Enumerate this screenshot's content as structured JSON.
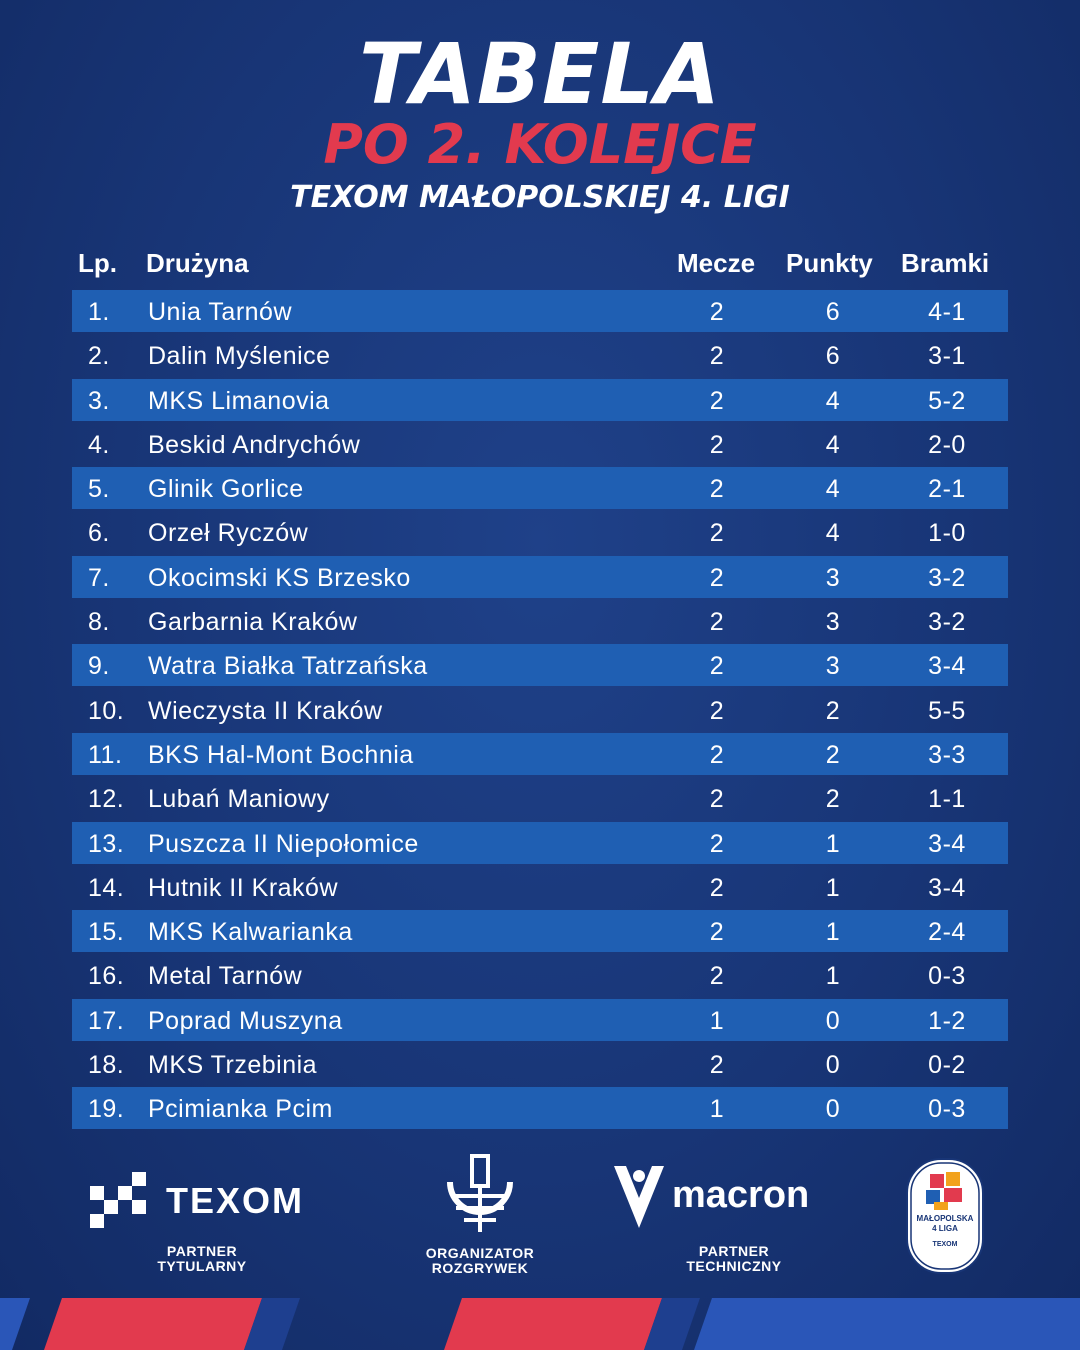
{
  "header": {
    "title": "TABELA",
    "subtitle": "PO 2. KOLEJCE",
    "league": "TEXOM MAŁOPOLSKIEJ 4. LIGI"
  },
  "columns": {
    "lp": "Lp.",
    "team": "Drużyna",
    "matches": "Mecze",
    "points": "Punkty",
    "goals": "Bramki"
  },
  "rows": [
    {
      "lp": "1.",
      "team": "Unia Tarnów",
      "m": "2",
      "p": "6",
      "g": "4-1"
    },
    {
      "lp": "2.",
      "team": "Dalin Myślenice",
      "m": "2",
      "p": "6",
      "g": "3-1"
    },
    {
      "lp": "3.",
      "team": "MKS Limanovia",
      "m": "2",
      "p": "4",
      "g": "5-2"
    },
    {
      "lp": "4.",
      "team": "Beskid Andrychów",
      "m": "2",
      "p": "4",
      "g": "2-0"
    },
    {
      "lp": "5.",
      "team": "Glinik Gorlice",
      "m": "2",
      "p": "4",
      "g": "2-1"
    },
    {
      "lp": "6.",
      "team": "Orzeł Ryczów",
      "m": "2",
      "p": "4",
      "g": "1-0"
    },
    {
      "lp": "7.",
      "team": "Okocimski KS Brzesko",
      "m": "2",
      "p": "3",
      "g": "3-2"
    },
    {
      "lp": "8.",
      "team": "Garbarnia Kraków",
      "m": "2",
      "p": "3",
      "g": "3-2"
    },
    {
      "lp": "9.",
      "team": "Watra Białka Tatrzańska",
      "m": "2",
      "p": "3",
      "g": "3-4"
    },
    {
      "lp": "10.",
      "team": "Wieczysta II Kraków",
      "m": "2",
      "p": "2",
      "g": "5-5"
    },
    {
      "lp": "11.",
      "team": "BKS Hal-Mont Bochnia",
      "m": "2",
      "p": "2",
      "g": "3-3"
    },
    {
      "lp": "12.",
      "team": "Lubań Maniowy",
      "m": "2",
      "p": "2",
      "g": "1-1"
    },
    {
      "lp": "13.",
      "team": "Puszcza II Niepołomice",
      "m": "2",
      "p": "1",
      "g": "3-4"
    },
    {
      "lp": "14.",
      "team": "Hutnik II Kraków",
      "m": "2",
      "p": "1",
      "g": "3-4"
    },
    {
      "lp": "15.",
      "team": "MKS Kalwarianka",
      "m": "2",
      "p": "1",
      "g": "2-4"
    },
    {
      "lp": "16.",
      "team": "Metal Tarnów",
      "m": "2",
      "p": "1",
      "g": "0-3"
    },
    {
      "lp": "17.",
      "team": "Poprad Muszyna",
      "m": "1",
      "p": "0",
      "g": "1-2"
    },
    {
      "lp": "18.",
      "team": "MKS Trzebinia",
      "m": "2",
      "p": "0",
      "g": "0-2"
    },
    {
      "lp": "19.",
      "team": "Pcimianka Pcim",
      "m": "1",
      "p": "0",
      "g": "0-3"
    }
  ],
  "sponsors": {
    "texom": {
      "name": "TEXOM",
      "caption1": "PARTNER",
      "caption2": "TYTULARNY"
    },
    "mzpn": {
      "caption1": "ORGANIZATOR",
      "caption2": "ROZGRYWEK"
    },
    "macron": {
      "name": "macron",
      "caption1": "PARTNER",
      "caption2": "TECHNICZNY"
    },
    "liga": {
      "line1": "MAŁOPOLSKA",
      "line2": "4 LIGA",
      "brand": "TEXOM"
    }
  },
  "colors": {
    "background": "#183576",
    "row_stripe": "#1f5fb3",
    "accent_red": "#e23a4e",
    "text": "#ffffff"
  }
}
